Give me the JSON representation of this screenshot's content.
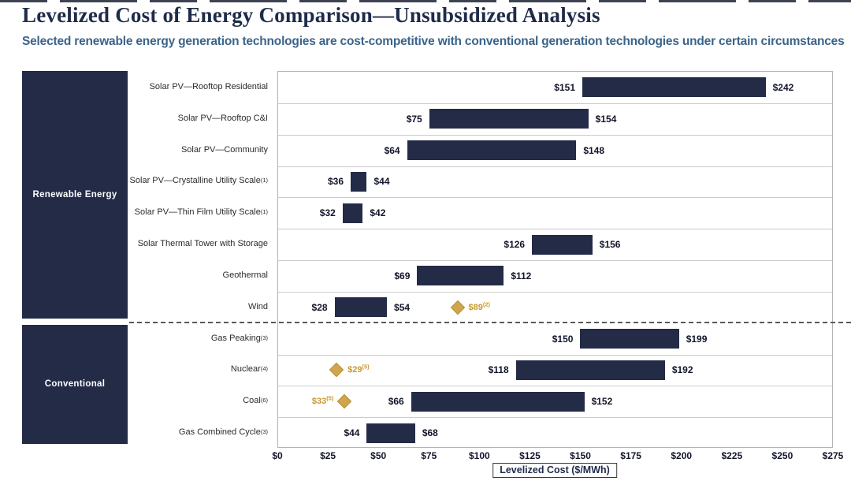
{
  "page": {
    "title": "Levelized Cost of Energy Comparison—Unsubsidized Analysis",
    "subtitle": "Selected renewable energy generation technologies are cost-competitive with conventional generation technologies under certain circumstances"
  },
  "colors": {
    "navy": "#242b47",
    "gold_fill": "#cfa64b",
    "gold_border": "#b8923a",
    "gold_text": "#c9992f",
    "title_text": "#1e2b49",
    "subtitle_text": "#3b6489",
    "value_text": "#12152a",
    "label_text": "#2b2b2b"
  },
  "chart_data": {
    "type": "bar",
    "variant": "horizontal-range",
    "title": "Levelized Cost of Energy Comparison—Unsubsidized Analysis",
    "subtitle": "Selected renewable energy generation technologies are cost-competitive with conventional generation technologies under certain circumstances",
    "xlabel": "Levelized Cost ($/MWh)",
    "xlim": [
      0,
      275
    ],
    "x_tick_step": 25,
    "x_tick_labels": [
      "$0",
      "$25",
      "$50",
      "$75",
      "$100",
      "$125",
      "$150",
      "$175",
      "$200",
      "$225",
      "$250",
      "$275"
    ],
    "grid": "row-separators",
    "legend": "none",
    "groups": [
      {
        "label": "Renewable Energy",
        "rows": [
          {
            "label": "Solar PV—Rooftop Residential",
            "sup": "",
            "min": 151,
            "max": 242,
            "min_label": "$151",
            "max_label": "$242"
          },
          {
            "label": "Solar PV—Rooftop C&I",
            "sup": "",
            "min": 75,
            "max": 154,
            "min_label": "$75",
            "max_label": "$154"
          },
          {
            "label": "Solar PV—Community",
            "sup": "",
            "min": 64,
            "max": 148,
            "min_label": "$64",
            "max_label": "$148"
          },
          {
            "label": "Solar PV—Crystalline Utility Scale",
            "sup": "(1)",
            "min": 36,
            "max": 44,
            "min_label": "$36",
            "max_label": "$44"
          },
          {
            "label": "Solar PV—Thin Film Utility Scale",
            "sup": "(1)",
            "min": 32,
            "max": 42,
            "min_label": "$32",
            "max_label": "$42"
          },
          {
            "label": "Solar Thermal Tower with Storage",
            "sup": "",
            "min": 126,
            "max": 156,
            "min_label": "$126",
            "max_label": "$156"
          },
          {
            "label": "Geothermal",
            "sup": "",
            "min": 69,
            "max": 112,
            "min_label": "$69",
            "max_label": "$112"
          },
          {
            "label": "Wind",
            "sup": "",
            "min": 28,
            "max": 54,
            "min_label": "$28",
            "max_label": "$54",
            "diamond": {
              "value": 89,
              "label": "$89",
              "sup": "(2)",
              "label_side": "right"
            }
          }
        ]
      },
      {
        "label": "Conventional",
        "rows": [
          {
            "label": "Gas Peaking",
            "sup": "(3)",
            "min": 150,
            "max": 199,
            "min_label": "$150",
            "max_label": "$199"
          },
          {
            "label": "Nuclear",
            "sup": "(4)",
            "min": 118,
            "max": 192,
            "min_label": "$118",
            "max_label": "$192",
            "diamond": {
              "value": 29,
              "label": "$29",
              "sup": "(5)",
              "label_side": "right"
            }
          },
          {
            "label": "Coal",
            "sup": "(6)",
            "min": 66,
            "max": 152,
            "min_label": "$66",
            "max_label": "$152",
            "diamond": {
              "value": 33,
              "label": "$33",
              "sup": "(5)",
              "label_side": "left"
            }
          },
          {
            "label": "Gas Combined Cycle",
            "sup": "(3)",
            "min": 44,
            "max": 68,
            "min_label": "$44",
            "max_label": "$68"
          }
        ]
      }
    ]
  }
}
